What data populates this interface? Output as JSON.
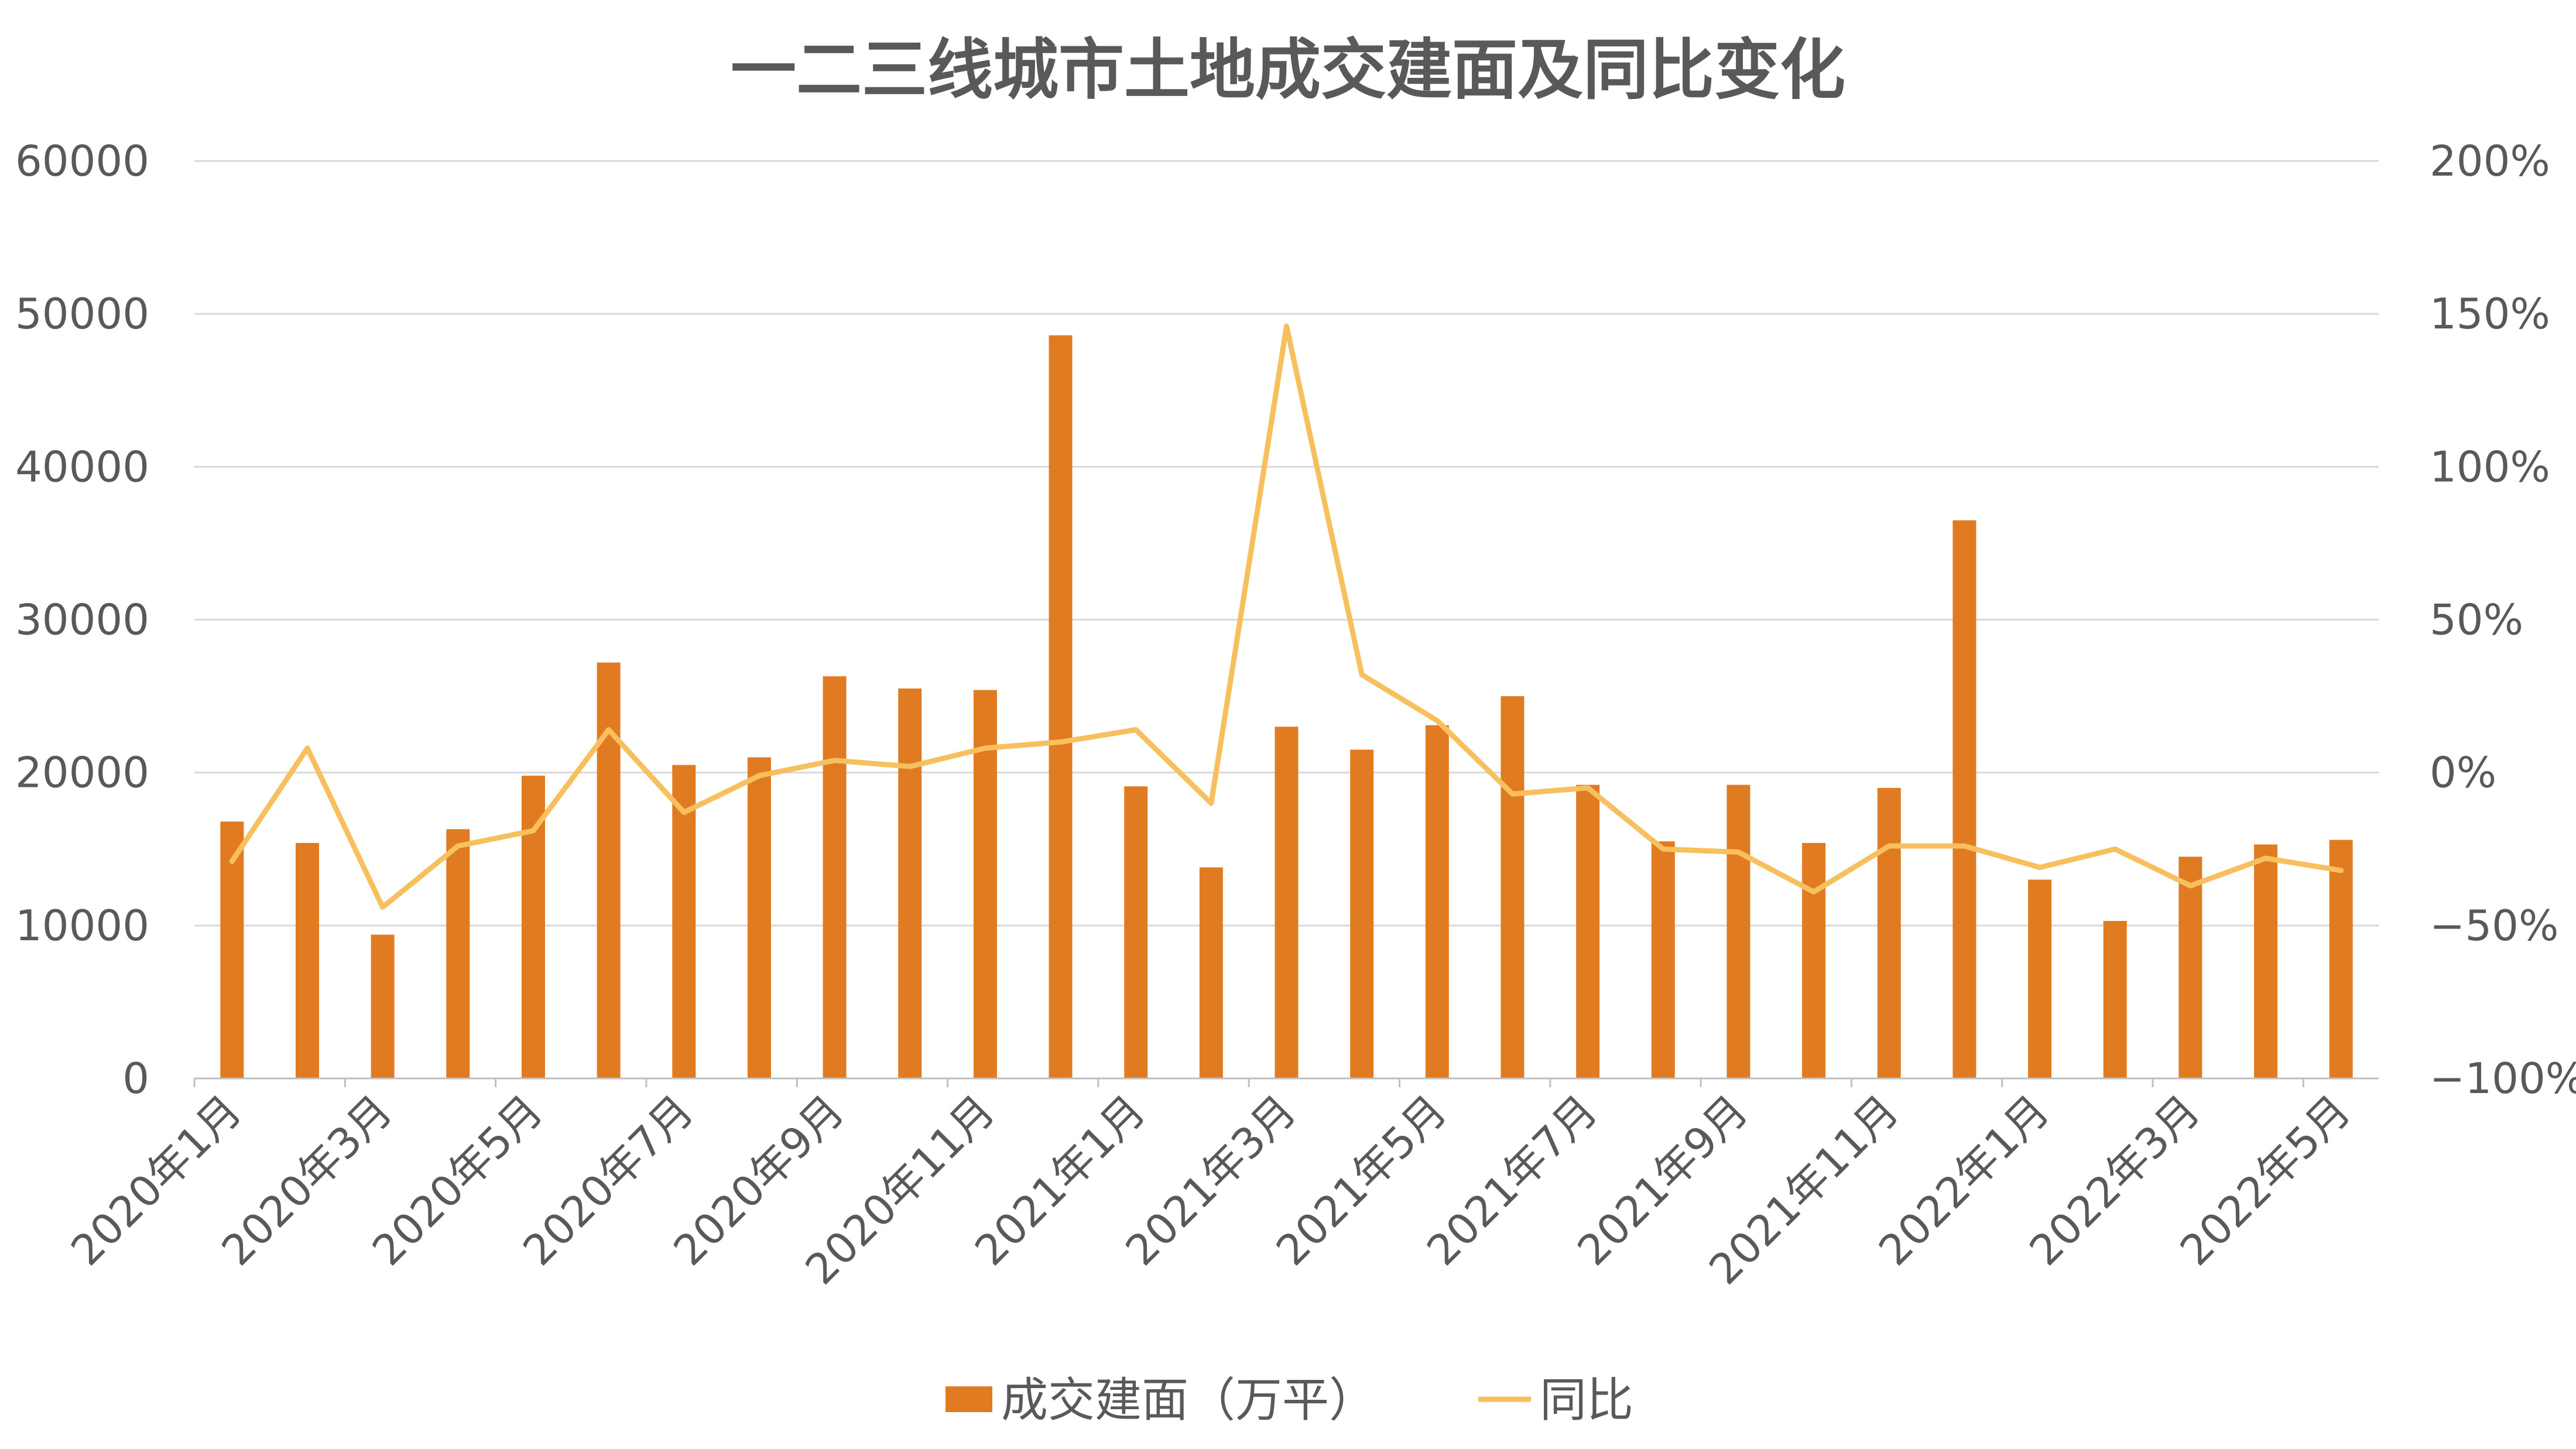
{
  "chart_data": {
    "type": "bar",
    "title": "一二三线城市土地成交建面及同比变化",
    "categories": [
      "2020年1月",
      "2020年2月",
      "2020年3月",
      "2020年4月",
      "2020年5月",
      "2020年6月",
      "2020年7月",
      "2020年8月",
      "2020年9月",
      "2020年10月",
      "2020年11月",
      "2020年12月",
      "2021年1月",
      "2021年2月",
      "2021年3月",
      "2021年4月",
      "2021年5月",
      "2021年6月",
      "2021年7月",
      "2021年8月",
      "2021年9月",
      "2021年10月",
      "2021年11月",
      "2021年12月",
      "2022年1月",
      "2022年2月",
      "2022年3月",
      "2022年4月",
      "2022年5月"
    ],
    "x_tick_labels": [
      "2020年1月",
      "2020年3月",
      "2020年5月",
      "2020年7月",
      "2020年9月",
      "2020年11月",
      "2021年1月",
      "2021年3月",
      "2021年5月",
      "2021年7月",
      "2021年9月",
      "2021年11月",
      "2022年1月",
      "2022年3月",
      "2022年5月"
    ],
    "series": [
      {
        "name": "成交建面（万平）",
        "type": "bar",
        "axis": "left",
        "color": "#E07B22",
        "values": [
          16800,
          15400,
          9400,
          16300,
          19800,
          27200,
          20500,
          21000,
          26300,
          25500,
          25400,
          48600,
          19100,
          13800,
          23000,
          21500,
          23100,
          25000,
          19200,
          15500,
          19200,
          15400,
          19000,
          36500,
          13000,
          10300,
          14500,
          15300,
          15600
        ]
      },
      {
        "name": "同比",
        "type": "line",
        "axis": "right",
        "color": "#F8BF5F",
        "values": [
          -29,
          8,
          -44,
          -24,
          -19,
          14,
          -13,
          -1,
          4,
          2,
          8,
          10,
          14,
          -10,
          146,
          32,
          17,
          -7,
          -5,
          -25,
          -26,
          -39,
          -24,
          -24,
          -31,
          -25,
          -37,
          -28,
          -32
        ]
      }
    ],
    "y_left": {
      "ylim": [
        0,
        60000
      ],
      "ticks": [
        0,
        10000,
        20000,
        30000,
        40000,
        50000,
        60000
      ],
      "tick_labels": [
        "0",
        "10000",
        "20000",
        "30000",
        "40000",
        "50000",
        "60000"
      ]
    },
    "y_right": {
      "ylim": [
        -100,
        200
      ],
      "unit": "%",
      "ticks": [
        -100,
        -50,
        0,
        50,
        100,
        150,
        200
      ],
      "tick_labels": [
        "−100%",
        "−50%",
        "0%",
        "50%",
        "100%",
        "150%",
        "200%"
      ]
    },
    "grid": true,
    "legend": {
      "placement": "bottom",
      "entries": [
        "成交建面（万平）",
        "同比"
      ]
    },
    "colors": {
      "grid": "#D9D9D9",
      "axis": "#BFBFBF",
      "text": "#595959"
    }
  }
}
